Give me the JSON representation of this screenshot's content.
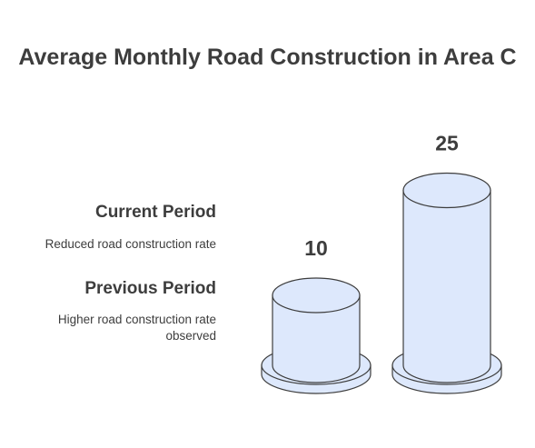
{
  "chart_data": {
    "type": "bar",
    "title": "Average Monthly Road Construction in Area C",
    "categories": [
      "Current Period",
      "Previous Period"
    ],
    "values": [
      10,
      25
    ],
    "descriptions": [
      "Reduced road construction rate",
      "Higher road construction rate observed"
    ],
    "value_labels": [
      "10",
      "25"
    ],
    "ylim": [
      0,
      25
    ],
    "grid": false,
    "legend": "left",
    "colors": {
      "fill": "#dde8fc",
      "stroke": "#3d3d3d",
      "text": "#3d3d3d"
    }
  }
}
